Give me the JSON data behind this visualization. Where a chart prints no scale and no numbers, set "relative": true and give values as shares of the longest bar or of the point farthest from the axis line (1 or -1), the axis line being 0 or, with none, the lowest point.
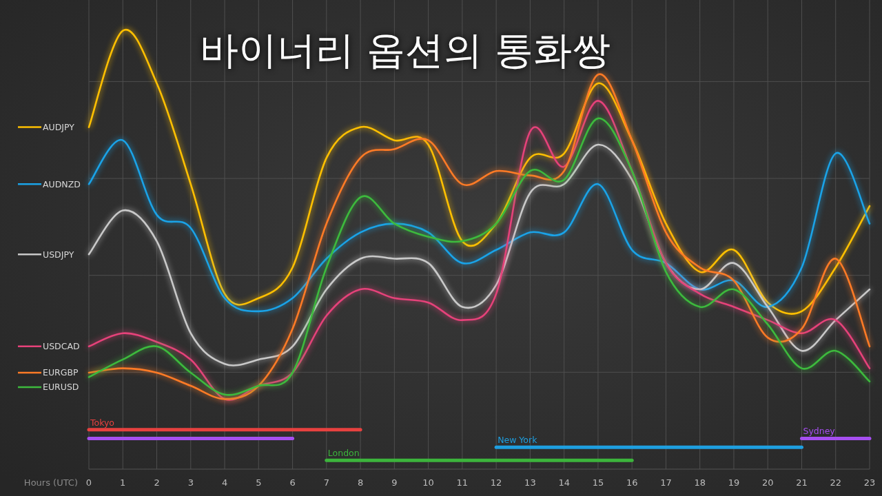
{
  "chart_data": {
    "type": "line",
    "title": "바이너리 옵션의 통화쌍",
    "xlabel": "Hours (UTC)",
    "relative": true,
    "grid": true,
    "legend": "left",
    "x": [
      0,
      1,
      2,
      3,
      4,
      5,
      6,
      7,
      8,
      9,
      10,
      11,
      12,
      13,
      14,
      15,
      16,
      17,
      18,
      19,
      20,
      21,
      22,
      23
    ],
    "xlim": [
      0,
      23
    ],
    "xticks": [
      0,
      1,
      2,
      3,
      4,
      5,
      6,
      7,
      8,
      9,
      10,
      11,
      12,
      13,
      14,
      15,
      16,
      17,
      18,
      19,
      20,
      21,
      22,
      23
    ],
    "series": [
      {
        "name": "AUDJPY",
        "color": "#ffc000",
        "values": [
          0.78,
          1.0,
          0.88,
          0.65,
          0.4,
          0.39,
          0.46,
          0.71,
          0.78,
          0.75,
          0.74,
          0.52,
          0.56,
          0.71,
          0.72,
          0.88,
          0.75,
          0.56,
          0.45,
          0.5,
          0.38,
          0.36,
          0.46,
          0.6
        ]
      },
      {
        "name": "AUDNZD",
        "color": "#1aa3e8",
        "values": [
          0.65,
          0.75,
          0.58,
          0.55,
          0.39,
          0.36,
          0.39,
          0.48,
          0.54,
          0.56,
          0.54,
          0.47,
          0.5,
          0.54,
          0.54,
          0.65,
          0.5,
          0.47,
          0.41,
          0.43,
          0.37,
          0.46,
          0.72,
          0.56
        ]
      },
      {
        "name": "USDJPY",
        "color": "#c9c9c9",
        "values": [
          0.49,
          0.59,
          0.52,
          0.31,
          0.24,
          0.25,
          0.28,
          0.41,
          0.48,
          0.48,
          0.47,
          0.37,
          0.42,
          0.63,
          0.65,
          0.74,
          0.66,
          0.47,
          0.41,
          0.47,
          0.37,
          0.27,
          0.34,
          0.41
        ]
      },
      {
        "name": "USDCAD",
        "color": "#e6427a",
        "values": [
          0.28,
          0.31,
          0.29,
          0.25,
          0.16,
          0.19,
          0.22,
          0.35,
          0.41,
          0.39,
          0.38,
          0.34,
          0.4,
          0.77,
          0.69,
          0.84,
          0.68,
          0.47,
          0.4,
          0.37,
          0.34,
          0.31,
          0.34,
          0.23
        ]
      },
      {
        "name": "EURGBP",
        "color": "#ff7b26",
        "values": [
          0.22,
          0.23,
          0.22,
          0.19,
          0.16,
          0.19,
          0.32,
          0.56,
          0.71,
          0.73,
          0.75,
          0.65,
          0.68,
          0.67,
          0.68,
          0.9,
          0.75,
          0.54,
          0.46,
          0.43,
          0.3,
          0.32,
          0.48,
          0.28
        ]
      },
      {
        "name": "EURUSD",
        "color": "#3dba3d",
        "values": [
          0.21,
          0.25,
          0.28,
          0.22,
          0.17,
          0.19,
          0.22,
          0.46,
          0.62,
          0.56,
          0.53,
          0.52,
          0.56,
          0.68,
          0.66,
          0.8,
          0.68,
          0.45,
          0.37,
          0.41,
          0.33,
          0.23,
          0.27,
          0.2
        ]
      },
      {
        "name": "Tokyo",
        "color": "#e8413f",
        "x": [
          0,
          8
        ],
        "values": [
          0.09,
          0.09
        ]
      },
      {
        "color": "#a64ff0",
        "x": [
          0,
          6
        ],
        "values": [
          0.07,
          0.07
        ]
      },
      {
        "name": "Sydney",
        "color": "#a64ff0",
        "x": [
          21,
          23
        ],
        "values": [
          0.07,
          0.07
        ]
      },
      {
        "name": "New York",
        "color": "#1e9fe0",
        "x": [
          12,
          21
        ],
        "values": [
          0.05,
          0.05
        ]
      },
      {
        "name": "London",
        "color": "#3cb43c",
        "x": [
          7,
          16
        ],
        "values": [
          0.02,
          0.02
        ]
      }
    ]
  }
}
